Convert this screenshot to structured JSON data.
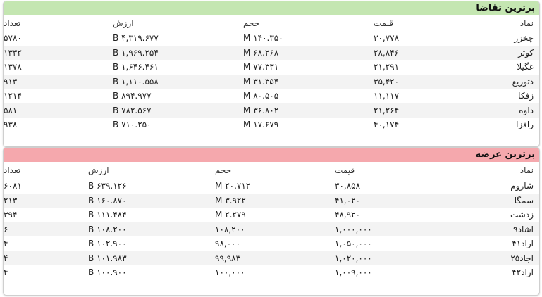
{
  "demand": {
    "title": "برترین تقاضا",
    "headers": [
      "نماد",
      "قیمت",
      "حجم",
      "ارزش",
      "تعداد"
    ],
    "rows": [
      [
        "چخزر",
        "۳۰,۷۷۸",
        "۱۴۰.۳۵۰ M",
        "۴,۳۱۹.۶۷۷ B",
        "۵۷۸۰"
      ],
      [
        "کوثر",
        "۲۸,۸۴۶",
        "۶۸.۲۶۸ M",
        "۱,۹۶۹.۲۵۴ B",
        "۱۳۳۲"
      ],
      [
        "غگیلا",
        "۲۱,۲۹۱",
        "۷۷.۳۳۱ M",
        "۱,۶۴۶.۴۶۱ B",
        "۱۳۷۸"
      ],
      [
        "دتوزیع",
        "۳۵,۴۲۰",
        "۳۱.۳۵۴ M",
        "۱,۱۱۰.۵۵۸ B",
        "۹۱۳"
      ],
      [
        "زفکا",
        "۱۱,۱۱۷",
        "۸۰.۵۰۵ M",
        "۸۹۴.۹۷۷ B",
        "۱۲۱۴"
      ],
      [
        "داوه",
        "۲۱,۲۶۴",
        "۳۶.۸۰۲ M",
        "۷۸۲.۵۶۷ B",
        "۵۸۱"
      ],
      [
        "رافزا",
        "۴۰,۱۷۴",
        "۱۷.۶۷۹ M",
        "۷۱۰.۲۵۰ B",
        "۹۳۸"
      ]
    ]
  },
  "supply": {
    "title": "برترین عرضه",
    "headers": [
      "نماد",
      "قیمت",
      "حجم",
      "ارزش",
      "تعداد"
    ],
    "rows": [
      [
        "شاروم",
        "۳۰,۸۵۸",
        "۲۰.۷۱۲ M",
        "۶۳۹.۱۲۶ B",
        "۶۰۸۱"
      ],
      [
        "سمگا",
        "۴۱,۰۲۰",
        "۳.۹۲۲ M",
        "۱۶۰.۸۷۰ B",
        "۲۱۳"
      ],
      [
        "زدشت",
        "۴۸,۹۲۰",
        "۲.۲۷۹ M",
        "۱۱۱.۴۸۴ B",
        "۳۹۴"
      ],
      [
        "اشاد۹",
        "۱,۰۰۰,۰۰۰",
        "۱۰۸,۲۰۰",
        "۱۰۸.۲۰۰ B",
        "۶"
      ],
      [
        "اراد۴۱",
        "۱,۰۵۰,۰۰۰",
        "۹۸,۰۰۰",
        "۱۰۲.۹۰۰ B",
        "۴"
      ],
      [
        "اجاد۲۵",
        "۱,۰۲۰,۰۰۰",
        "۹۹,۹۸۳",
        "۱۰۱.۹۸۳ B",
        "۴"
      ],
      [
        "اراد۴۲",
        "۱,۰۰۹,۰۰۰",
        "۱۰۰,۰۰۰",
        "۱۰۰.۹۰۰ B",
        "۴"
      ]
    ]
  }
}
